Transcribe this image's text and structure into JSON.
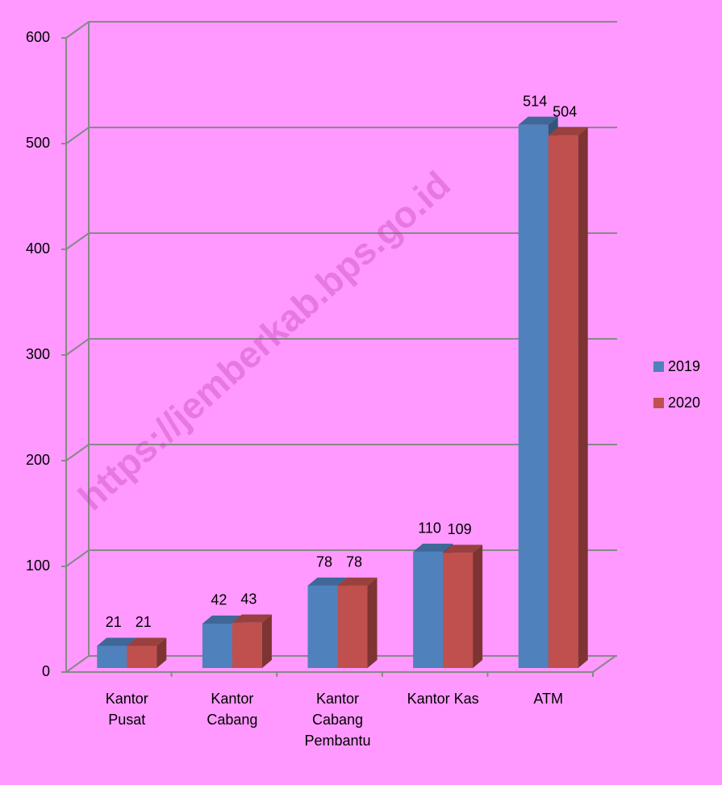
{
  "chart_data": {
    "type": "bar3d",
    "categories": [
      "Kantor Pusat",
      "Kantor Cabang",
      "Kantor Cabang Pembantu",
      "Kantor Kas",
      "ATM"
    ],
    "series": [
      {
        "name": "2019",
        "color": "#4f81bd",
        "values": [
          21,
          42,
          78,
          110,
          514
        ]
      },
      {
        "name": "2020",
        "color": "#c0504d",
        "values": [
          21,
          43,
          78,
          109,
          504
        ]
      }
    ],
    "ylim": [
      0,
      600
    ],
    "yticks": [
      0,
      100,
      200,
      300,
      400,
      500,
      600
    ],
    "grid": true,
    "legend": "right",
    "watermark": "https://jemberkab.bps.go.id"
  }
}
